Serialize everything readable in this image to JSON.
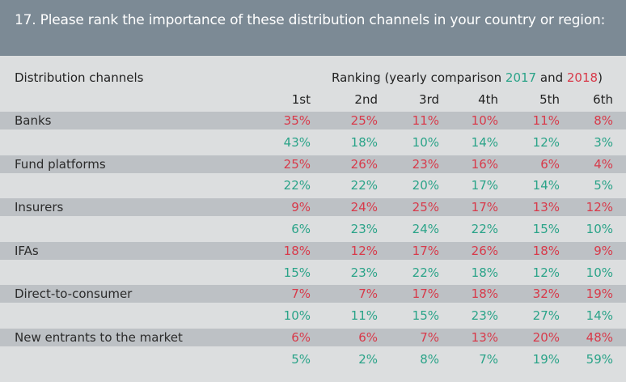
{
  "header": {
    "title": "17. Please rank the importance of these distribution channels in your country or region:"
  },
  "table": {
    "channel_header": "Distribution channels",
    "ranking_header_prefix": "Ranking (yearly comparison ",
    "year_2017": "2017",
    "and": " and ",
    "year_2018": "2018",
    "ranking_header_suffix": ")",
    "rank_labels": [
      "1st",
      "2nd",
      "3rd",
      "4th",
      "5th",
      "6th"
    ],
    "colors": {
      "2017": "#2aa388",
      "2018": "#d83a4a"
    },
    "channels": [
      {
        "name": "Banks",
        "y2018": [
          "35%",
          "25%",
          "11%",
          "10%",
          "11%",
          "8%"
        ],
        "y2017": [
          "43%",
          "18%",
          "10%",
          "14%",
          "12%",
          "3%"
        ]
      },
      {
        "name": "Fund platforms",
        "y2018": [
          "25%",
          "26%",
          "23%",
          "16%",
          "6%",
          "4%"
        ],
        "y2017": [
          "22%",
          "22%",
          "20%",
          "17%",
          "14%",
          "5%"
        ]
      },
      {
        "name": "Insurers",
        "y2018": [
          "9%",
          "24%",
          "25%",
          "17%",
          "13%",
          "12%"
        ],
        "y2017": [
          "6%",
          "23%",
          "24%",
          "22%",
          "15%",
          "10%"
        ]
      },
      {
        "name": "IFAs",
        "y2018": [
          "18%",
          "12%",
          "17%",
          "26%",
          "18%",
          "9%"
        ],
        "y2017": [
          "15%",
          "23%",
          "22%",
          "18%",
          "12%",
          "10%"
        ]
      },
      {
        "name": "Direct-to-consumer",
        "y2018": [
          "7%",
          "7%",
          "17%",
          "18%",
          "32%",
          "19%"
        ],
        "y2017": [
          "10%",
          "11%",
          "15%",
          "23%",
          "27%",
          "14%"
        ]
      },
      {
        "name": "New entrants to the market",
        "y2018": [
          "6%",
          "6%",
          "7%",
          "13%",
          "20%",
          "48%"
        ],
        "y2017": [
          "5%",
          "2%",
          "8%",
          "7%",
          "19%",
          "59%"
        ]
      }
    ]
  }
}
